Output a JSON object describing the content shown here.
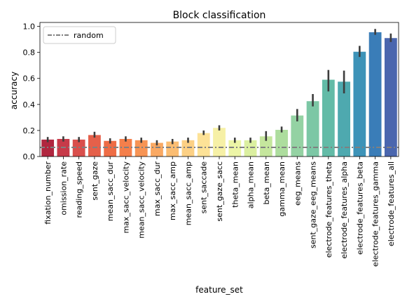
{
  "chart_data": {
    "type": "bar",
    "title": "Block classification",
    "xlabel": "feature_set",
    "ylabel": "accuracy",
    "ylim": [
      0,
      1.03
    ],
    "yticks": [
      0.0,
      0.2,
      0.4,
      0.6,
      0.8,
      1.0
    ],
    "grid": false,
    "legend": {
      "placement": "top-left",
      "entries": [
        "random"
      ]
    },
    "random_line": {
      "name": "random",
      "value": 0.07,
      "color": "#808080"
    },
    "categories": [
      "fixation_number",
      "omission_rate",
      "reading_speed",
      "sent_gaze",
      "mean_sacc_dur",
      "max_sacc_velocity",
      "mean_sacc_velocity",
      "max_sacc_dur",
      "max_sacc_amp",
      "mean_sacc_amp",
      "sent_saccade",
      "sent_gaze_sacc",
      "theta_mean",
      "alpha_mean",
      "beta_mean",
      "gamma_mean",
      "eeg_means",
      "sent_gaze_eeg_means",
      "electrode_features_theta",
      "electrode_features_alpha",
      "electrode_features_beta",
      "electrode_features_gamma",
      "electrode_features_all"
    ],
    "values": [
      0.13,
      0.135,
      0.13,
      0.165,
      0.12,
      0.135,
      0.125,
      0.105,
      0.115,
      0.125,
      0.18,
      0.22,
      0.125,
      0.125,
      0.155,
      0.205,
      0.315,
      0.425,
      0.59,
      0.575,
      0.805,
      0.955,
      0.91
    ],
    "errors_low": [
      0.11,
      0.115,
      0.11,
      0.145,
      0.1,
      0.115,
      0.105,
      0.085,
      0.095,
      0.105,
      0.165,
      0.2,
      0.105,
      0.105,
      0.12,
      0.185,
      0.27,
      0.385,
      0.5,
      0.485,
      0.765,
      0.935,
      0.88
    ],
    "errors_high": [
      0.15,
      0.155,
      0.15,
      0.19,
      0.14,
      0.155,
      0.145,
      0.125,
      0.135,
      0.145,
      0.2,
      0.24,
      0.145,
      0.145,
      0.195,
      0.23,
      0.365,
      0.48,
      0.665,
      0.66,
      0.85,
      0.98,
      0.945
    ],
    "colors": [
      "#b0263f",
      "#c73a49",
      "#d94f4c",
      "#e5604a",
      "#ee6c45",
      "#f47f4b",
      "#f79455",
      "#faa963",
      "#fbbd72",
      "#fcd084",
      "#fde297",
      "#f6f0a6",
      "#ecf5a6",
      "#dbefa0",
      "#c5e69d",
      "#addd9e",
      "#94d2a3",
      "#7cc7a5",
      "#63bba7",
      "#4ea9af",
      "#3d93b8",
      "#3a7db8",
      "#4a66ae"
    ]
  }
}
